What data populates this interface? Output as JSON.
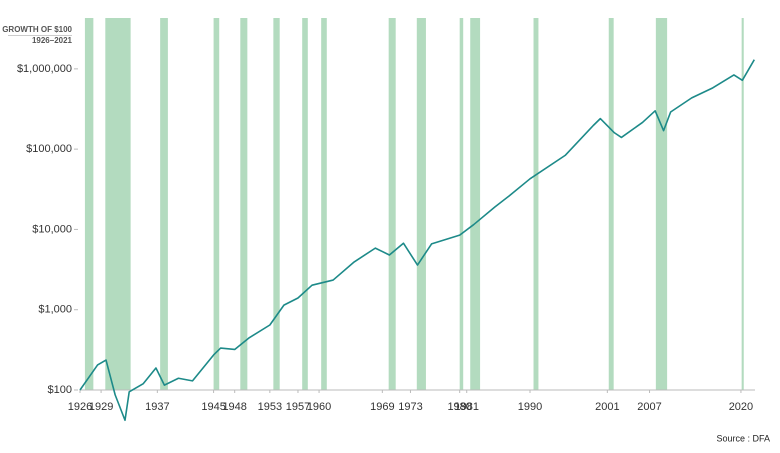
{
  "chart_data": {
    "type": "line",
    "title": "GROWTH OF $100",
    "subtitle": "1926–2021",
    "source": "Source : DFA",
    "log_scale": true,
    "grid": false,
    "xlim": [
      1926,
      2022
    ],
    "ylim": [
      100,
      4300000
    ],
    "xticks": [
      1926,
      1929,
      1937,
      1945,
      1948,
      1953,
      1957,
      1960,
      1969,
      1973,
      1980,
      1981,
      1990,
      2001,
      2007,
      2020
    ],
    "yticks": [
      {
        "value": 100,
        "label": "$100"
      },
      {
        "value": 1000,
        "label": "$1,000"
      },
      {
        "value": 10000,
        "label": "$10,000"
      },
      {
        "value": 100000,
        "label": "$100,000"
      },
      {
        "value": 1000000,
        "label": "$1,000,000"
      }
    ],
    "shaded_periods": [
      [
        1926.7,
        1927.9
      ],
      [
        1929.6,
        1933.2
      ],
      [
        1937.4,
        1938.5
      ],
      [
        1945.0,
        1945.8
      ],
      [
        1948.8,
        1949.8
      ],
      [
        1953.5,
        1954.4
      ],
      [
        1957.6,
        1958.4
      ],
      [
        1960.3,
        1961.1
      ],
      [
        1969.9,
        1970.9
      ],
      [
        1973.9,
        1975.2
      ],
      [
        1980.0,
        1980.5
      ],
      [
        1981.5,
        1982.9
      ],
      [
        1990.5,
        1991.2
      ],
      [
        2001.2,
        2001.9
      ],
      [
        2007.9,
        2009.5
      ],
      [
        2020.1,
        2020.4
      ]
    ],
    "shade_color": "#b3dbbf",
    "series": [
      {
        "name": "Growth of $100",
        "color": "#1d8a89",
        "x": [
          1926,
          1928.5,
          1929.7,
          1931,
          1932.4,
          1933,
          1935,
          1936.8,
          1938,
          1940,
          1942,
          1945,
          1946,
          1948,
          1950,
          1953,
          1955,
          1957,
          1959,
          1962,
          1965,
          1968,
          1970,
          1972,
          1974,
          1976,
          1980,
          1982,
          1985,
          1987,
          1990,
          1995,
          1999,
          2000,
          2002,
          2003,
          2006,
          2007.8,
          2009,
          2010,
          2013,
          2016,
          2019,
          2020.2,
          2021.9
        ],
        "values": [
          100,
          205,
          236,
          87,
          42,
          95,
          120,
          188,
          115,
          140,
          130,
          273,
          333,
          320,
          443,
          645,
          1140,
          1400,
          2020,
          2340,
          3940,
          5850,
          4800,
          6730,
          3600,
          6600,
          8500,
          11500,
          19000,
          26000,
          42700,
          83600,
          197000,
          240000,
          160000,
          140000,
          215000,
          300000,
          170000,
          290000,
          435000,
          580000,
          840000,
          720000,
          1300000
        ]
      }
    ]
  }
}
